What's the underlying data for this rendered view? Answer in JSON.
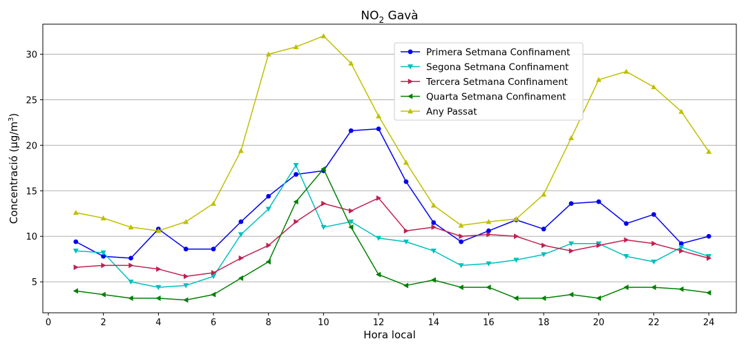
{
  "chart_data": {
    "type": "line",
    "title": "NO",
    "title_subscript": "2",
    "title_suffix": " Gavà",
    "xlabel": "Hora local",
    "ylabel_parts": [
      "Concentració (µg/m",
      "3",
      ")"
    ],
    "xlim": [
      -0.2,
      25.0
    ],
    "ylim": [
      1.6,
      33.3
    ],
    "xticks": [
      0,
      2,
      4,
      6,
      8,
      10,
      12,
      14,
      16,
      18,
      20,
      22,
      24
    ],
    "yticks": [
      5,
      10,
      15,
      20,
      25,
      30
    ],
    "grid": "horizontal",
    "legend_position": "upper-center-right",
    "x": [
      1,
      2,
      3,
      4,
      5,
      6,
      7,
      8,
      9,
      10,
      11,
      12,
      13,
      14,
      15,
      16,
      17,
      18,
      19,
      20,
      21,
      22,
      23,
      24
    ],
    "series": [
      {
        "name": "Primera Setmana Confinament",
        "color": "#0000ee",
        "marker": "circle",
        "values": [
          9.4,
          7.8,
          7.6,
          10.8,
          8.6,
          8.6,
          11.6,
          14.4,
          16.8,
          17.2,
          21.6,
          21.8,
          16.0,
          11.5,
          9.4,
          10.6,
          11.8,
          10.8,
          13.6,
          13.8,
          11.4,
          12.4,
          9.2,
          10.0
        ]
      },
      {
        "name": "Segona Setmana Confinament",
        "color": "#00bfbf",
        "marker": "triangle-down",
        "values": [
          8.4,
          8.2,
          5.0,
          4.4,
          4.6,
          5.6,
          10.2,
          13.0,
          17.8,
          11.0,
          11.6,
          9.8,
          9.4,
          8.4,
          6.8,
          7.0,
          7.4,
          8.0,
          9.2,
          9.2,
          7.8,
          7.2,
          8.8,
          7.8
        ]
      },
      {
        "name": "Tercera Setmana Confinament",
        "color": "#bf2050",
        "marker": "triangle-right",
        "values": [
          6.6,
          6.8,
          6.8,
          6.4,
          5.6,
          6.0,
          7.6,
          9.0,
          11.6,
          13.6,
          12.8,
          14.2,
          10.6,
          11.0,
          10.0,
          10.2,
          10.0,
          9.0,
          8.4,
          9.0,
          9.6,
          9.2,
          8.4,
          7.6
        ]
      },
      {
        "name": "Quarta Setmana Confinament",
        "color": "#008000",
        "marker": "triangle-left",
        "values": [
          4.0,
          3.6,
          3.2,
          3.2,
          3.0,
          3.6,
          5.4,
          7.2,
          13.8,
          17.4,
          11.0,
          5.8,
          4.6,
          5.2,
          4.4,
          4.4,
          3.2,
          3.2,
          3.6,
          3.2,
          4.4,
          4.4,
          4.2,
          3.8
        ]
      },
      {
        "name": "Any Passat",
        "color": "#bfbf00",
        "marker": "triangle-up",
        "values": [
          12.6,
          12.0,
          11.0,
          10.6,
          11.6,
          13.6,
          19.4,
          30.0,
          30.8,
          32.0,
          29.0,
          23.2,
          18.1,
          13.4,
          11.2,
          11.6,
          11.9,
          14.6,
          20.8,
          27.2,
          28.1,
          26.4,
          23.7,
          19.3
        ]
      }
    ]
  }
}
